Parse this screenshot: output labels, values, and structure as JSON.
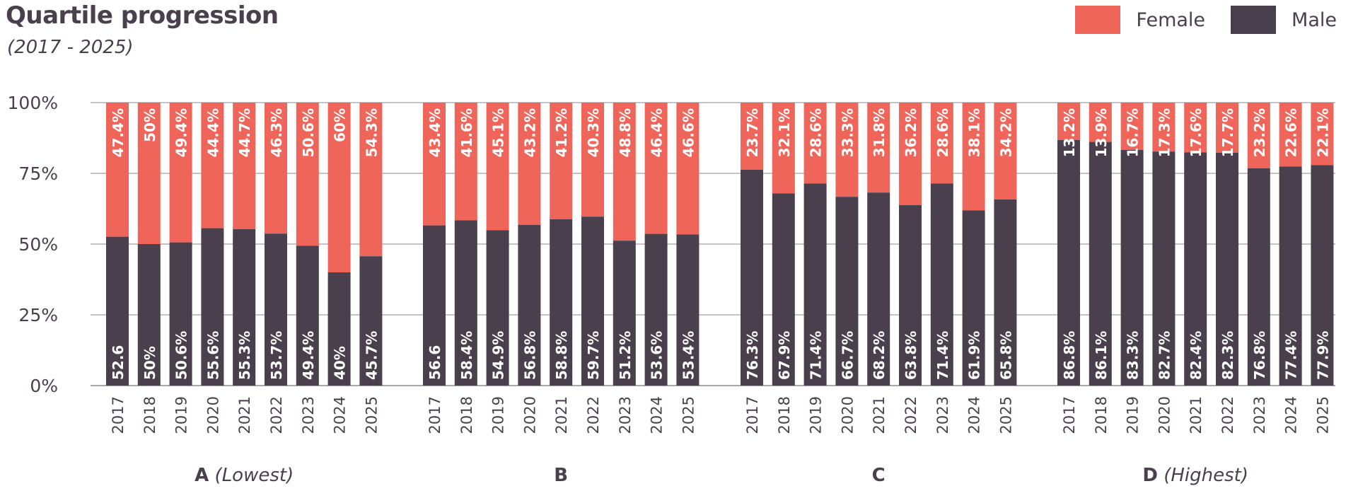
{
  "chart_data": {
    "type": "bar",
    "stacked": true,
    "title": "Quartile progression",
    "subtitle": "(2017 - 2025)",
    "ylim": [
      0,
      100
    ],
    "y_ticks": [
      "0%",
      "25%",
      "50%",
      "75%",
      "100%"
    ],
    "grid": true,
    "legend_position": "top-right",
    "series_colors": {
      "Female": "#f0655a",
      "Male": "#4a3f4c"
    },
    "legend": [
      "Female",
      "Male"
    ],
    "groups": [
      {
        "name": "A",
        "qualifier": "(Lowest)",
        "categories": [
          "2017",
          "2018",
          "2019",
          "2020",
          "2021",
          "2022",
          "2023",
          "2024",
          "2025"
        ],
        "male_values": [
          52.6,
          50,
          50.6,
          55.6,
          55.3,
          53.7,
          49.4,
          40,
          45.7
        ],
        "female_values": [
          47.4,
          50,
          49.4,
          44.4,
          44.7,
          46.3,
          50.6,
          60,
          54.3
        ],
        "male_labels": [
          "52.6",
          "50%",
          "50.6%",
          "55.6%",
          "55.3%",
          "53.7%",
          "49.4%",
          "40%",
          "45.7%"
        ],
        "female_labels": [
          "47.4%",
          "50%",
          "49.4%",
          "44.4%",
          "44.7%",
          "46.3%",
          "50.6%",
          "60%",
          "54.3%"
        ]
      },
      {
        "name": "B",
        "qualifier": "",
        "categories": [
          "2017",
          "2018",
          "2019",
          "2020",
          "2021",
          "2022",
          "2023",
          "2024",
          "2025"
        ],
        "male_values": [
          56.6,
          58.4,
          54.9,
          56.8,
          58.8,
          59.7,
          51.2,
          53.6,
          53.4
        ],
        "female_values": [
          43.4,
          41.6,
          45.1,
          43.2,
          41.2,
          40.3,
          48.8,
          46.4,
          46.6
        ],
        "male_labels": [
          "56.6",
          "58.4%",
          "54.9%",
          "56.8%",
          "58.8%",
          "59.7%",
          "51.2%",
          "53.6%",
          "53.4%"
        ],
        "female_labels": [
          "43.4%",
          "41.6%",
          "45.1%",
          "43.2%",
          "41.2%",
          "40.3%",
          "48.8%",
          "46.4%",
          "46.6%"
        ]
      },
      {
        "name": "C",
        "qualifier": "",
        "categories": [
          "2017",
          "2018",
          "2019",
          "2020",
          "2021",
          "2022",
          "2023",
          "2024",
          "2025"
        ],
        "male_values": [
          76.3,
          67.9,
          71.4,
          66.7,
          68.2,
          63.8,
          71.4,
          61.9,
          65.8
        ],
        "female_values": [
          23.7,
          32.1,
          28.6,
          33.3,
          31.8,
          36.2,
          28.6,
          38.1,
          34.2
        ],
        "male_labels": [
          "76.3%",
          "67.9%",
          "71.4%",
          "66.7%",
          "68.2%",
          "63.8%",
          "71.4%",
          "61.9%",
          "65.8%"
        ],
        "female_labels": [
          "23.7%",
          "32.1%",
          "28.6%",
          "33.3%",
          "31.8%",
          "36.2%",
          "28.6%",
          "38.1%",
          "34.2%"
        ]
      },
      {
        "name": "D",
        "qualifier": "(Highest)",
        "categories": [
          "2017",
          "2018",
          "2019",
          "2020",
          "2021",
          "2022",
          "2023",
          "2024",
          "2025"
        ],
        "male_values": [
          86.8,
          86.1,
          83.3,
          82.7,
          82.4,
          82.3,
          76.8,
          77.4,
          77.9
        ],
        "female_values": [
          13.2,
          13.9,
          16.7,
          17.3,
          17.6,
          17.7,
          23.2,
          22.6,
          22.1
        ],
        "male_labels": [
          "86.8%",
          "86.1%",
          "83.3%",
          "82.7%",
          "82.4%",
          "82.3%",
          "76.8%",
          "77.4%",
          "77.9%"
        ],
        "female_labels": [
          "13.2%",
          "13.9%",
          "16.7%",
          "17.3%",
          "17.6%",
          "17.7%",
          "23.2%",
          "22.6%",
          "22.1%"
        ]
      }
    ]
  }
}
